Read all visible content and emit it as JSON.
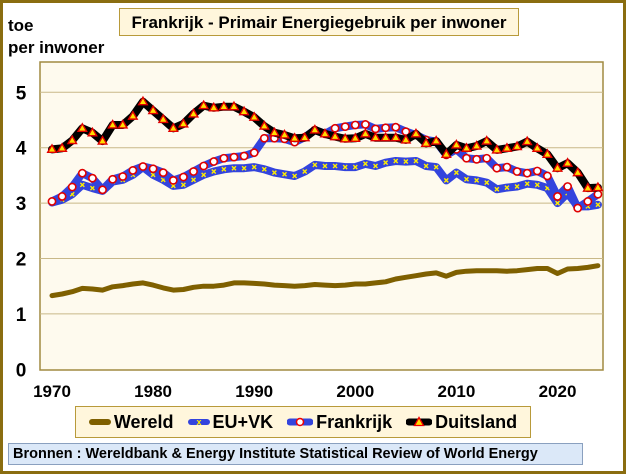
{
  "chart_data": {
    "type": "line",
    "title": "Frankrijk - Primair Energiegebruik per inwoner",
    "ylabel": "toe per inwoner",
    "ylabel_lines": [
      "toe",
      "per inwoner"
    ],
    "xlabel": "",
    "ylim": [
      0,
      5.5
    ],
    "yticks": [
      "0",
      "1",
      "2",
      "3",
      "4",
      "5"
    ],
    "xticks": [
      "1970",
      "1980",
      "1990",
      "2000",
      "2010",
      "2020"
    ],
    "xrange": [
      1970,
      2024
    ],
    "grid": true,
    "legend_position": "bottom",
    "series": [
      {
        "name": "Wereld",
        "color": "#7f6000",
        "marker": "none",
        "values": [
          1.33,
          1.36,
          1.4,
          1.46,
          1.45,
          1.43,
          1.49,
          1.51,
          1.54,
          1.56,
          1.52,
          1.47,
          1.43,
          1.44,
          1.48,
          1.5,
          1.5,
          1.52,
          1.56,
          1.56,
          1.55,
          1.54,
          1.52,
          1.51,
          1.5,
          1.51,
          1.53,
          1.52,
          1.51,
          1.52,
          1.54,
          1.54,
          1.56,
          1.58,
          1.63,
          1.66,
          1.69,
          1.72,
          1.74,
          1.68,
          1.75,
          1.77,
          1.78,
          1.78,
          1.78,
          1.77,
          1.78,
          1.8,
          1.82,
          1.82,
          1.73,
          1.81,
          1.82,
          1.84,
          1.87
        ]
      },
      {
        "name": "EU+VK",
        "color": "#3344dd",
        "marker": "x-yellow",
        "values": [
          3.01,
          3.06,
          3.16,
          3.33,
          3.27,
          3.22,
          3.39,
          3.42,
          3.51,
          3.65,
          3.51,
          3.42,
          3.31,
          3.33,
          3.42,
          3.51,
          3.57,
          3.61,
          3.63,
          3.63,
          3.65,
          3.61,
          3.55,
          3.52,
          3.49,
          3.57,
          3.69,
          3.67,
          3.67,
          3.65,
          3.65,
          3.71,
          3.67,
          3.73,
          3.76,
          3.75,
          3.76,
          3.67,
          3.65,
          3.41,
          3.55,
          3.43,
          3.41,
          3.37,
          3.25,
          3.28,
          3.3,
          3.35,
          3.33,
          3.27,
          3.0,
          3.18,
          2.94,
          2.94,
          2.97
        ]
      },
      {
        "name": "Frankrijk",
        "color": "#3344dd",
        "marker": "circle-white-red",
        "values": [
          3.03,
          3.12,
          3.29,
          3.54,
          3.45,
          3.24,
          3.43,
          3.48,
          3.59,
          3.66,
          3.62,
          3.55,
          3.41,
          3.47,
          3.57,
          3.67,
          3.75,
          3.81,
          3.83,
          3.85,
          3.91,
          4.17,
          4.17,
          4.16,
          4.1,
          4.19,
          4.32,
          4.25,
          4.35,
          4.38,
          4.41,
          4.42,
          4.34,
          4.36,
          4.37,
          4.29,
          4.23,
          4.14,
          4.11,
          3.87,
          3.97,
          3.81,
          3.79,
          3.81,
          3.63,
          3.65,
          3.57,
          3.54,
          3.58,
          3.49,
          3.12,
          3.3,
          2.91,
          3.03,
          3.16
        ]
      },
      {
        "name": "Duitsland",
        "color": "#000000",
        "marker": "triangle-red-yellow",
        "values": [
          3.97,
          3.99,
          4.13,
          4.35,
          4.27,
          4.12,
          4.41,
          4.41,
          4.57,
          4.83,
          4.67,
          4.51,
          4.35,
          4.43,
          4.61,
          4.76,
          4.72,
          4.74,
          4.74,
          4.65,
          4.55,
          4.39,
          4.27,
          4.23,
          4.17,
          4.18,
          4.32,
          4.25,
          4.2,
          4.16,
          4.17,
          4.25,
          4.18,
          4.18,
          4.18,
          4.14,
          4.25,
          4.08,
          4.12,
          3.88,
          4.05,
          3.99,
          4.03,
          4.12,
          3.96,
          3.99,
          4.02,
          4.11,
          3.99,
          3.88,
          3.63,
          3.72,
          3.55,
          3.27,
          3.28
        ]
      }
    ],
    "source": "Bronnen : Wereldbank & Energy Institute Statistical Review of World Energy"
  }
}
